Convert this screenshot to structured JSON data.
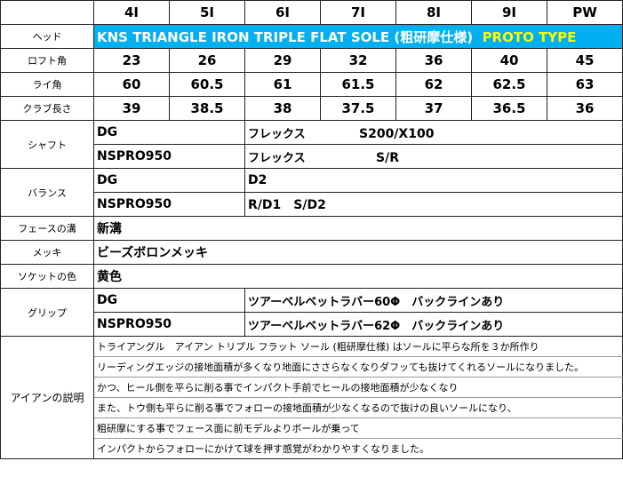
{
  "colors": {
    "head_bg": "#00b0f0",
    "proto_text": "#ffff00"
  },
  "columns": [
    "4I",
    "5I",
    "6I",
    "7I",
    "8I",
    "9I",
    "PW"
  ],
  "head": {
    "label": "ヘッド",
    "model": "KNS TRIANGLE IRON TRIPLE FLAT SOLE (粗研摩仕様)",
    "proto": "PROTO TYPE"
  },
  "loft": {
    "label": "ロフト角",
    "values": [
      "23",
      "26",
      "29",
      "32",
      "36",
      "40",
      "45"
    ]
  },
  "lie": {
    "label": "ライ角",
    "values": [
      "60",
      "60.5",
      "61",
      "61.5",
      "62",
      "62.5",
      "63"
    ]
  },
  "length": {
    "label": "クラブ長さ",
    "values": [
      "39",
      "38.5",
      "38",
      "37.5",
      "37",
      "36.5",
      "36"
    ]
  },
  "shaft": {
    "label": "シャフト",
    "rows": [
      {
        "name": "DG",
        "flex_label": "フレックス",
        "flex": "S200/X100"
      },
      {
        "name": "NSPRO950",
        "flex_label": "フレックス",
        "flex": "S/R"
      }
    ]
  },
  "balance": {
    "label": "バランス",
    "rows": [
      {
        "name": "DG",
        "value": "D2"
      },
      {
        "name": "NSPRO950",
        "value": "R/D1　S/D2"
      }
    ]
  },
  "groove": {
    "label": "フェースの溝",
    "value": "新溝"
  },
  "plating": {
    "label": "メッキ",
    "value": "ビーズボロンメッキ"
  },
  "socket": {
    "label": "ソケットの色",
    "value": "黄色"
  },
  "grip": {
    "label": "グリップ",
    "rows": [
      {
        "name": "DG",
        "value": "ツアーベルベットラバー60Φ　バックラインあり"
      },
      {
        "name": "NSPRO950",
        "value": "ツアーベルベットラバー62Φ　バックラインあり"
      }
    ]
  },
  "description": {
    "label": "アイアンの説明",
    "lines": [
      "トライアングル　アイアン トリプル フラット ソール (粗研摩仕様) はソールに平らな所を３か所作り",
      "リーディングエッジの接地面積が多くなり地面にささらなくなりダフッても抜けてくれるソールになりました。",
      "かつ、ヒール側を平らに削る事でインパクト手前でヒールの接地面積が少なくなり",
      "また、トウ側も平らに削る事でフォローの接地面積が少なくなるので抜けの良いソールになり、",
      "粗研摩にする事でフェース面に前モデルよりボールが乗って",
      "インパクトからフォローにかけて球を押す感覚がわかりやすくなりました。"
    ]
  }
}
